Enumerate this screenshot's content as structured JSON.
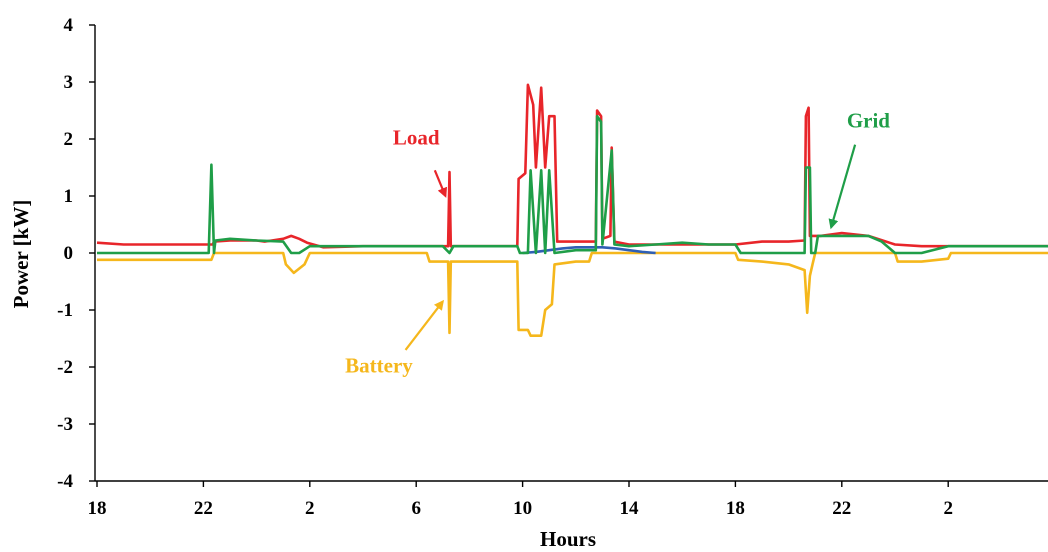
{
  "chart_data": {
    "type": "line",
    "xlabel": "Hours",
    "ylabel": "Power [kW]",
    "xlim": [
      18,
      59.5
    ],
    "ylim": [
      -4,
      4
    ],
    "x_ticks": [
      18,
      22,
      26,
      30,
      34,
      38,
      42,
      46,
      50
    ],
    "x_tick_labels": [
      "18",
      "22",
      "2",
      "6",
      "10",
      "14",
      "18",
      "22",
      "2"
    ],
    "y_ticks": [
      4,
      3,
      2,
      1,
      0,
      -1,
      -2,
      -3,
      -4
    ],
    "y_tick_labels": [
      "4",
      "3",
      "2",
      "1",
      "0",
      "-1",
      "-2",
      "-3",
      "-4"
    ],
    "series": [
      {
        "name": "Load",
        "color": "#e8252a",
        "points": [
          [
            18,
            0.18
          ],
          [
            19,
            0.15
          ],
          [
            20,
            0.15
          ],
          [
            21,
            0.15
          ],
          [
            22.2,
            0.15
          ],
          [
            22.35,
            0.15
          ],
          [
            22.4,
            0.2
          ],
          [
            23,
            0.22
          ],
          [
            24,
            0.22
          ],
          [
            24.3,
            0.2
          ],
          [
            25,
            0.25
          ],
          [
            25.3,
            0.3
          ],
          [
            25.6,
            0.25
          ],
          [
            25.9,
            0.18
          ],
          [
            26.5,
            0.1
          ],
          [
            28,
            0.12
          ],
          [
            30,
            0.12
          ],
          [
            31,
            0.12
          ],
          [
            31.2,
            0.12
          ],
          [
            31.25,
            1.42
          ],
          [
            31.3,
            0.12
          ],
          [
            33,
            0.12
          ],
          [
            33.8,
            0.12
          ],
          [
            33.85,
            1.3
          ],
          [
            34.1,
            1.4
          ],
          [
            34.2,
            2.95
          ],
          [
            34.4,
            2.6
          ],
          [
            34.5,
            1.5
          ],
          [
            34.7,
            2.9
          ],
          [
            34.85,
            1.5
          ],
          [
            35,
            2.4
          ],
          [
            35.2,
            2.4
          ],
          [
            35.3,
            0.2
          ],
          [
            36,
            0.2
          ],
          [
            36.75,
            0.2
          ],
          [
            36.8,
            2.5
          ],
          [
            36.95,
            2.4
          ],
          [
            37,
            0.25
          ],
          [
            37.3,
            0.3
          ],
          [
            37.35,
            1.85
          ],
          [
            37.45,
            0.2
          ],
          [
            38,
            0.15
          ],
          [
            39,
            0.15
          ],
          [
            40,
            0.15
          ],
          [
            41,
            0.15
          ],
          [
            42,
            0.15
          ],
          [
            43,
            0.2
          ],
          [
            44,
            0.2
          ],
          [
            44.6,
            0.22
          ],
          [
            44.65,
            2.4
          ],
          [
            44.75,
            2.55
          ],
          [
            44.8,
            0.3
          ],
          [
            45.2,
            0.3
          ],
          [
            46,
            0.35
          ],
          [
            47,
            0.3
          ],
          [
            48,
            0.15
          ],
          [
            49,
            0.12
          ],
          [
            50,
            0.12
          ],
          [
            52,
            0.12
          ],
          [
            54,
            0.12
          ],
          [
            56,
            0.12
          ],
          [
            58,
            0.12
          ],
          [
            59.5,
            0.12
          ]
        ]
      },
      {
        "name": "Grid",
        "color": "#1f9e48",
        "points": [
          [
            18,
            0.0
          ],
          [
            20,
            0.0
          ],
          [
            22.2,
            0.0
          ],
          [
            22.3,
            1.55
          ],
          [
            22.4,
            0.0
          ],
          [
            22.45,
            0.22
          ],
          [
            23,
            0.25
          ],
          [
            24,
            0.22
          ],
          [
            25,
            0.2
          ],
          [
            25.3,
            0.0
          ],
          [
            25.6,
            0.0
          ],
          [
            26,
            0.12
          ],
          [
            28,
            0.12
          ],
          [
            30,
            0.12
          ],
          [
            31,
            0.12
          ],
          [
            31.25,
            0.0
          ],
          [
            31.4,
            0.12
          ],
          [
            33,
            0.12
          ],
          [
            33.8,
            0.12
          ],
          [
            33.9,
            0.0
          ],
          [
            34.2,
            0.0
          ],
          [
            34.3,
            1.45
          ],
          [
            34.5,
            0.0
          ],
          [
            34.7,
            1.45
          ],
          [
            34.85,
            0.0
          ],
          [
            35,
            1.45
          ],
          [
            35.2,
            0.0
          ],
          [
            36,
            0.05
          ],
          [
            36.75,
            0.05
          ],
          [
            36.8,
            2.4
          ],
          [
            36.95,
            2.3
          ],
          [
            37,
            0.15
          ],
          [
            37.35,
            1.8
          ],
          [
            37.45,
            0.15
          ],
          [
            38,
            0.12
          ],
          [
            39,
            0.15
          ],
          [
            40,
            0.18
          ],
          [
            41,
            0.15
          ],
          [
            42,
            0.15
          ],
          [
            42.2,
            0.0
          ],
          [
            44,
            0.0
          ],
          [
            44.6,
            0.0
          ],
          [
            44.65,
            1.5
          ],
          [
            44.8,
            1.5
          ],
          [
            44.85,
            0.0
          ],
          [
            45,
            0.0
          ],
          [
            45.1,
            0.3
          ],
          [
            46,
            0.3
          ],
          [
            47,
            0.3
          ],
          [
            47.5,
            0.2
          ],
          [
            48,
            0.0
          ],
          [
            49,
            0.0
          ],
          [
            50,
            0.12
          ],
          [
            52,
            0.12
          ],
          [
            54,
            0.12
          ],
          [
            56,
            0.12
          ],
          [
            58,
            0.12
          ],
          [
            59.5,
            0.12
          ]
        ]
      },
      {
        "name": "Battery",
        "color": "#f5b71c",
        "points": [
          [
            18,
            -0.12
          ],
          [
            19,
            -0.12
          ],
          [
            20,
            -0.12
          ],
          [
            21,
            -0.12
          ],
          [
            22.3,
            -0.12
          ],
          [
            22.4,
            0.0
          ],
          [
            24,
            0.0
          ],
          [
            25,
            0.0
          ],
          [
            25.1,
            -0.2
          ],
          [
            25.4,
            -0.35
          ],
          [
            25.8,
            -0.2
          ],
          [
            26,
            0.0
          ],
          [
            28,
            0.0
          ],
          [
            30,
            0.0
          ],
          [
            30.4,
            0.0
          ],
          [
            30.5,
            -0.15
          ],
          [
            31,
            -0.15
          ],
          [
            31.2,
            -0.15
          ],
          [
            31.25,
            -1.4
          ],
          [
            31.3,
            -0.15
          ],
          [
            33,
            -0.15
          ],
          [
            33.8,
            -0.15
          ],
          [
            33.85,
            -1.35
          ],
          [
            34.2,
            -1.35
          ],
          [
            34.3,
            -1.45
          ],
          [
            34.5,
            -1.45
          ],
          [
            34.7,
            -1.45
          ],
          [
            34.85,
            -1.0
          ],
          [
            35.1,
            -0.9
          ],
          [
            35.2,
            -0.2
          ],
          [
            36,
            -0.15
          ],
          [
            36.5,
            -0.15
          ],
          [
            36.6,
            0.0
          ],
          [
            38,
            0.0
          ],
          [
            40,
            0.0
          ],
          [
            41,
            0.0
          ],
          [
            42,
            0.0
          ],
          [
            42.1,
            -0.12
          ],
          [
            43,
            -0.15
          ],
          [
            44,
            -0.2
          ],
          [
            44.6,
            -0.3
          ],
          [
            44.7,
            -1.05
          ],
          [
            44.8,
            -0.4
          ],
          [
            44.9,
            -0.2
          ],
          [
            45,
            0.0
          ],
          [
            46,
            0.0
          ],
          [
            47,
            0.0
          ],
          [
            48,
            0.0
          ],
          [
            48.1,
            -0.15
          ],
          [
            49,
            -0.15
          ],
          [
            50,
            -0.1
          ],
          [
            50.1,
            0.0
          ],
          [
            52,
            0.0
          ],
          [
            54,
            0.0
          ],
          [
            56,
            0.0
          ],
          [
            58,
            0.0
          ],
          [
            59.5,
            0.0
          ]
        ]
      },
      {
        "name": "",
        "color": "#2f5fb4",
        "points": [
          [
            34,
            0.0
          ],
          [
            34.5,
            0.02
          ],
          [
            35,
            0.05
          ],
          [
            35.5,
            0.08
          ],
          [
            36,
            0.1
          ],
          [
            36.5,
            0.1
          ],
          [
            37,
            0.1
          ],
          [
            37.5,
            0.08
          ],
          [
            38,
            0.05
          ],
          [
            38.5,
            0.02
          ],
          [
            39,
            0.0
          ]
        ]
      }
    ],
    "annotations": [
      {
        "label": "Load",
        "color": "#e8252a",
        "text_at": [
          30.0,
          1.9
        ],
        "arrow_from": [
          30.7,
          1.45
        ],
        "arrow_to": [
          31.1,
          1.0
        ]
      },
      {
        "label": "Grid",
        "color": "#1f9e48",
        "text_at": [
          47.0,
          2.2
        ],
        "arrow_from": [
          46.5,
          1.9
        ],
        "arrow_to": [
          45.6,
          0.45
        ]
      },
      {
        "label": "Battery",
        "color": "#f5b71c",
        "text_at": [
          28.6,
          -2.1
        ],
        "arrow_from": [
          29.6,
          -1.7
        ],
        "arrow_to": [
          31.0,
          -0.85
        ]
      }
    ]
  }
}
